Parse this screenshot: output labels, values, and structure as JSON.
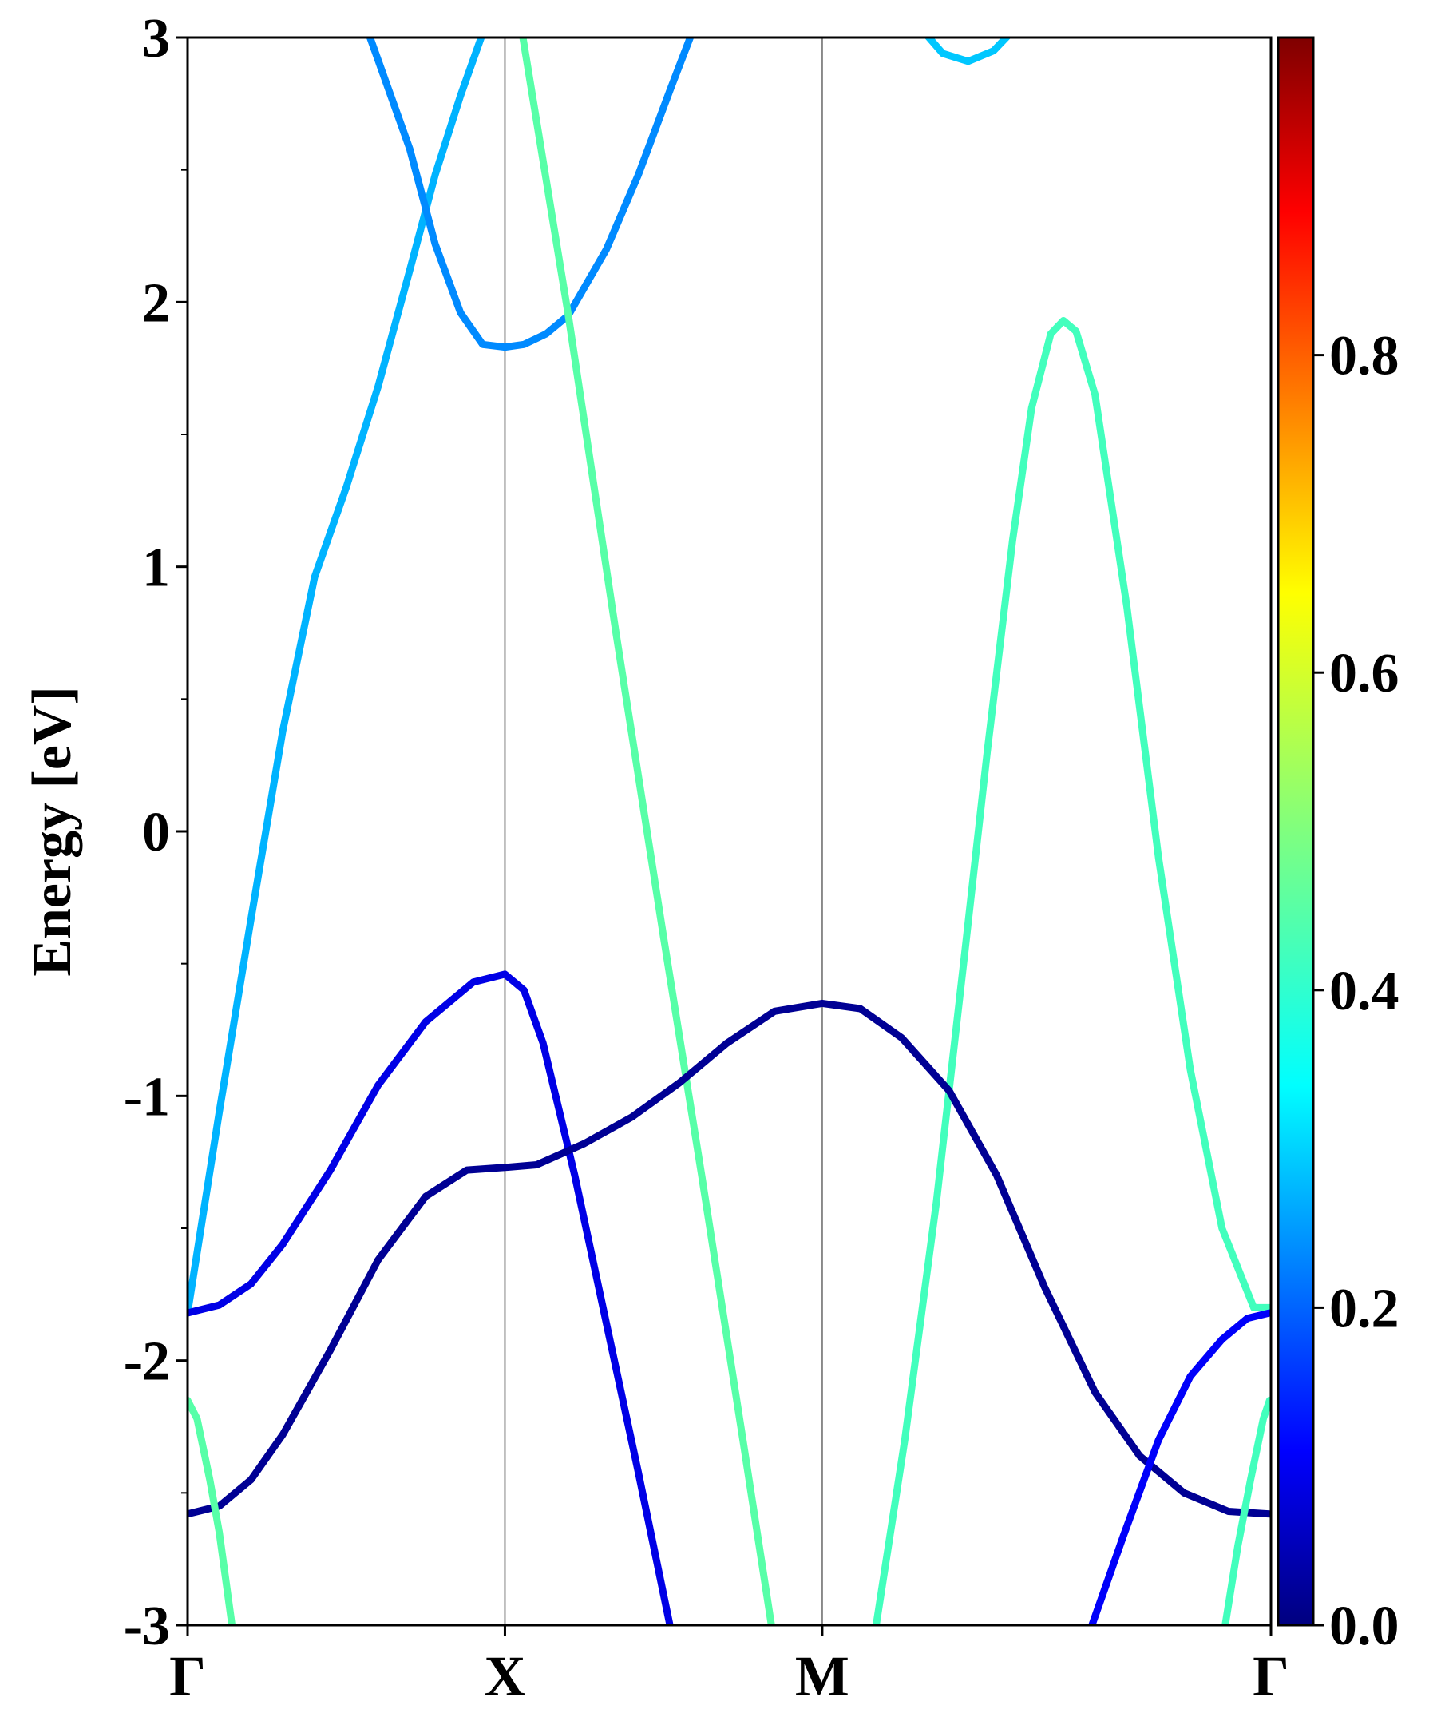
{
  "chart_data": {
    "type": "line",
    "title": "",
    "xlabel": "",
    "ylabel": "Energy [eV]",
    "ylim": [
      -3,
      3
    ],
    "yticks": [
      -3,
      -2,
      -1,
      0,
      1,
      2,
      3
    ],
    "ytick_labels": [
      "-3",
      "-2",
      "-1",
      "0",
      "1",
      "2",
      "3"
    ],
    "xlim": [
      0,
      3.4142
    ],
    "kpoints": [
      {
        "label": "Γ",
        "x": 0
      },
      {
        "label": "X",
        "x": 1
      },
      {
        "label": "M",
        "x": 2
      },
      {
        "label": "Γ",
        "x": 3.4142
      }
    ],
    "colorbar": {
      "range": [
        0,
        1
      ],
      "ticks": [
        0.0,
        0.2,
        0.4,
        0.6,
        0.8
      ],
      "tick_labels": [
        "0.0",
        "0.2",
        "0.4",
        "0.6",
        "0.8"
      ],
      "colormap": "jet"
    },
    "series": [
      {
        "weight": 0.3,
        "points": [
          [
            0,
            -1.82
          ],
          [
            0.1,
            -1.06
          ],
          [
            0.2,
            -0.33
          ],
          [
            0.3,
            0.38
          ],
          [
            0.4,
            0.96
          ],
          [
            0.5,
            1.3
          ],
          [
            0.6,
            1.68
          ],
          [
            0.7,
            2.12
          ],
          [
            0.78,
            2.48
          ],
          [
            0.86,
            2.78
          ],
          [
            0.94,
            3.05
          ]
        ]
      },
      {
        "weight": 0.26,
        "points": [
          [
            0.56,
            3.05
          ],
          [
            0.7,
            2.58
          ],
          [
            0.78,
            2.22
          ],
          [
            0.86,
            1.96
          ],
          [
            0.93,
            1.84
          ],
          [
            1.0,
            1.83
          ],
          [
            1.06,
            1.84
          ],
          [
            1.13,
            1.88
          ],
          [
            1.2,
            1.95
          ],
          [
            1.32,
            2.2
          ],
          [
            1.42,
            2.48
          ],
          [
            1.52,
            2.8
          ],
          [
            1.6,
            3.05
          ]
        ]
      },
      {
        "weight": 0.46,
        "points": [
          [
            1.05,
            3.05
          ],
          [
            1.2,
            1.95
          ],
          [
            1.35,
            0.75
          ],
          [
            1.5,
            -0.4
          ],
          [
            1.62,
            -1.3
          ],
          [
            1.75,
            -2.3
          ],
          [
            1.84,
            -3.0
          ]
        ]
      },
      {
        "weight": 0.32,
        "points": [
          [
            2.3,
            3.05
          ],
          [
            2.38,
            2.94
          ],
          [
            2.46,
            2.91
          ],
          [
            2.54,
            2.95
          ],
          [
            2.62,
            3.05
          ]
        ]
      },
      {
        "weight": 0.44,
        "points": [
          [
            2.17,
            -3.0
          ],
          [
            2.26,
            -2.3
          ],
          [
            2.36,
            -1.4
          ],
          [
            2.45,
            -0.45
          ],
          [
            2.52,
            0.3
          ],
          [
            2.6,
            1.1
          ],
          [
            2.66,
            1.6
          ],
          [
            2.72,
            1.88
          ],
          [
            2.76,
            1.93
          ],
          [
            2.8,
            1.89
          ],
          [
            2.86,
            1.65
          ],
          [
            2.96,
            0.85
          ],
          [
            3.06,
            -0.1
          ],
          [
            3.16,
            -0.9
          ],
          [
            3.26,
            -1.5
          ],
          [
            3.36,
            -1.8
          ],
          [
            3.41,
            -1.8
          ]
        ]
      },
      {
        "weight": 0.1,
        "points": [
          [
            0,
            -1.82
          ],
          [
            0.1,
            -1.79
          ],
          [
            0.2,
            -1.71
          ],
          [
            0.3,
            -1.56
          ],
          [
            0.45,
            -1.28
          ],
          [
            0.6,
            -0.96
          ],
          [
            0.75,
            -0.72
          ],
          [
            0.9,
            -0.57
          ],
          [
            1.0,
            -0.54
          ],
          [
            1.06,
            -0.6
          ],
          [
            1.12,
            -0.8
          ],
          [
            1.22,
            -1.3
          ],
          [
            1.32,
            -1.86
          ],
          [
            1.42,
            -2.42
          ],
          [
            1.52,
            -3.0
          ]
        ]
      },
      {
        "weight": 0.02,
        "points": [
          [
            0,
            -2.58
          ],
          [
            0.1,
            -2.55
          ],
          [
            0.2,
            -2.45
          ],
          [
            0.3,
            -2.28
          ],
          [
            0.45,
            -1.96
          ],
          [
            0.6,
            -1.62
          ],
          [
            0.75,
            -1.38
          ],
          [
            0.88,
            -1.28
          ],
          [
            1.0,
            -1.27
          ],
          [
            1.1,
            -1.26
          ],
          [
            1.25,
            -1.18
          ],
          [
            1.4,
            -1.08
          ],
          [
            1.55,
            -0.95
          ],
          [
            1.7,
            -0.8
          ],
          [
            1.85,
            -0.68
          ],
          [
            2.0,
            -0.65
          ],
          [
            2.12,
            -0.67
          ],
          [
            2.25,
            -0.78
          ],
          [
            2.4,
            -0.98
          ],
          [
            2.55,
            -1.3
          ],
          [
            2.7,
            -1.72
          ],
          [
            2.86,
            -2.12
          ],
          [
            3.0,
            -2.36
          ],
          [
            3.14,
            -2.5
          ],
          [
            3.28,
            -2.57
          ],
          [
            3.41,
            -2.58
          ]
        ]
      },
      {
        "weight": 0.12,
        "points": [
          [
            2.85,
            -3.0
          ],
          [
            2.95,
            -2.66
          ],
          [
            3.06,
            -2.3
          ],
          [
            3.16,
            -2.06
          ],
          [
            3.26,
            -1.92
          ],
          [
            3.34,
            -1.84
          ],
          [
            3.41,
            -1.82
          ]
        ]
      },
      {
        "weight": 0.46,
        "points": [
          [
            0,
            -2.15
          ],
          [
            0.03,
            -2.22
          ],
          [
            0.07,
            -2.45
          ],
          [
            0.1,
            -2.65
          ],
          [
            0.14,
            -3.0
          ]
        ]
      },
      {
        "weight": 0.44,
        "points": [
          [
            3.27,
            -3.0
          ],
          [
            3.31,
            -2.7
          ],
          [
            3.35,
            -2.45
          ],
          [
            3.39,
            -2.22
          ],
          [
            3.41,
            -2.15
          ]
        ]
      }
    ]
  }
}
